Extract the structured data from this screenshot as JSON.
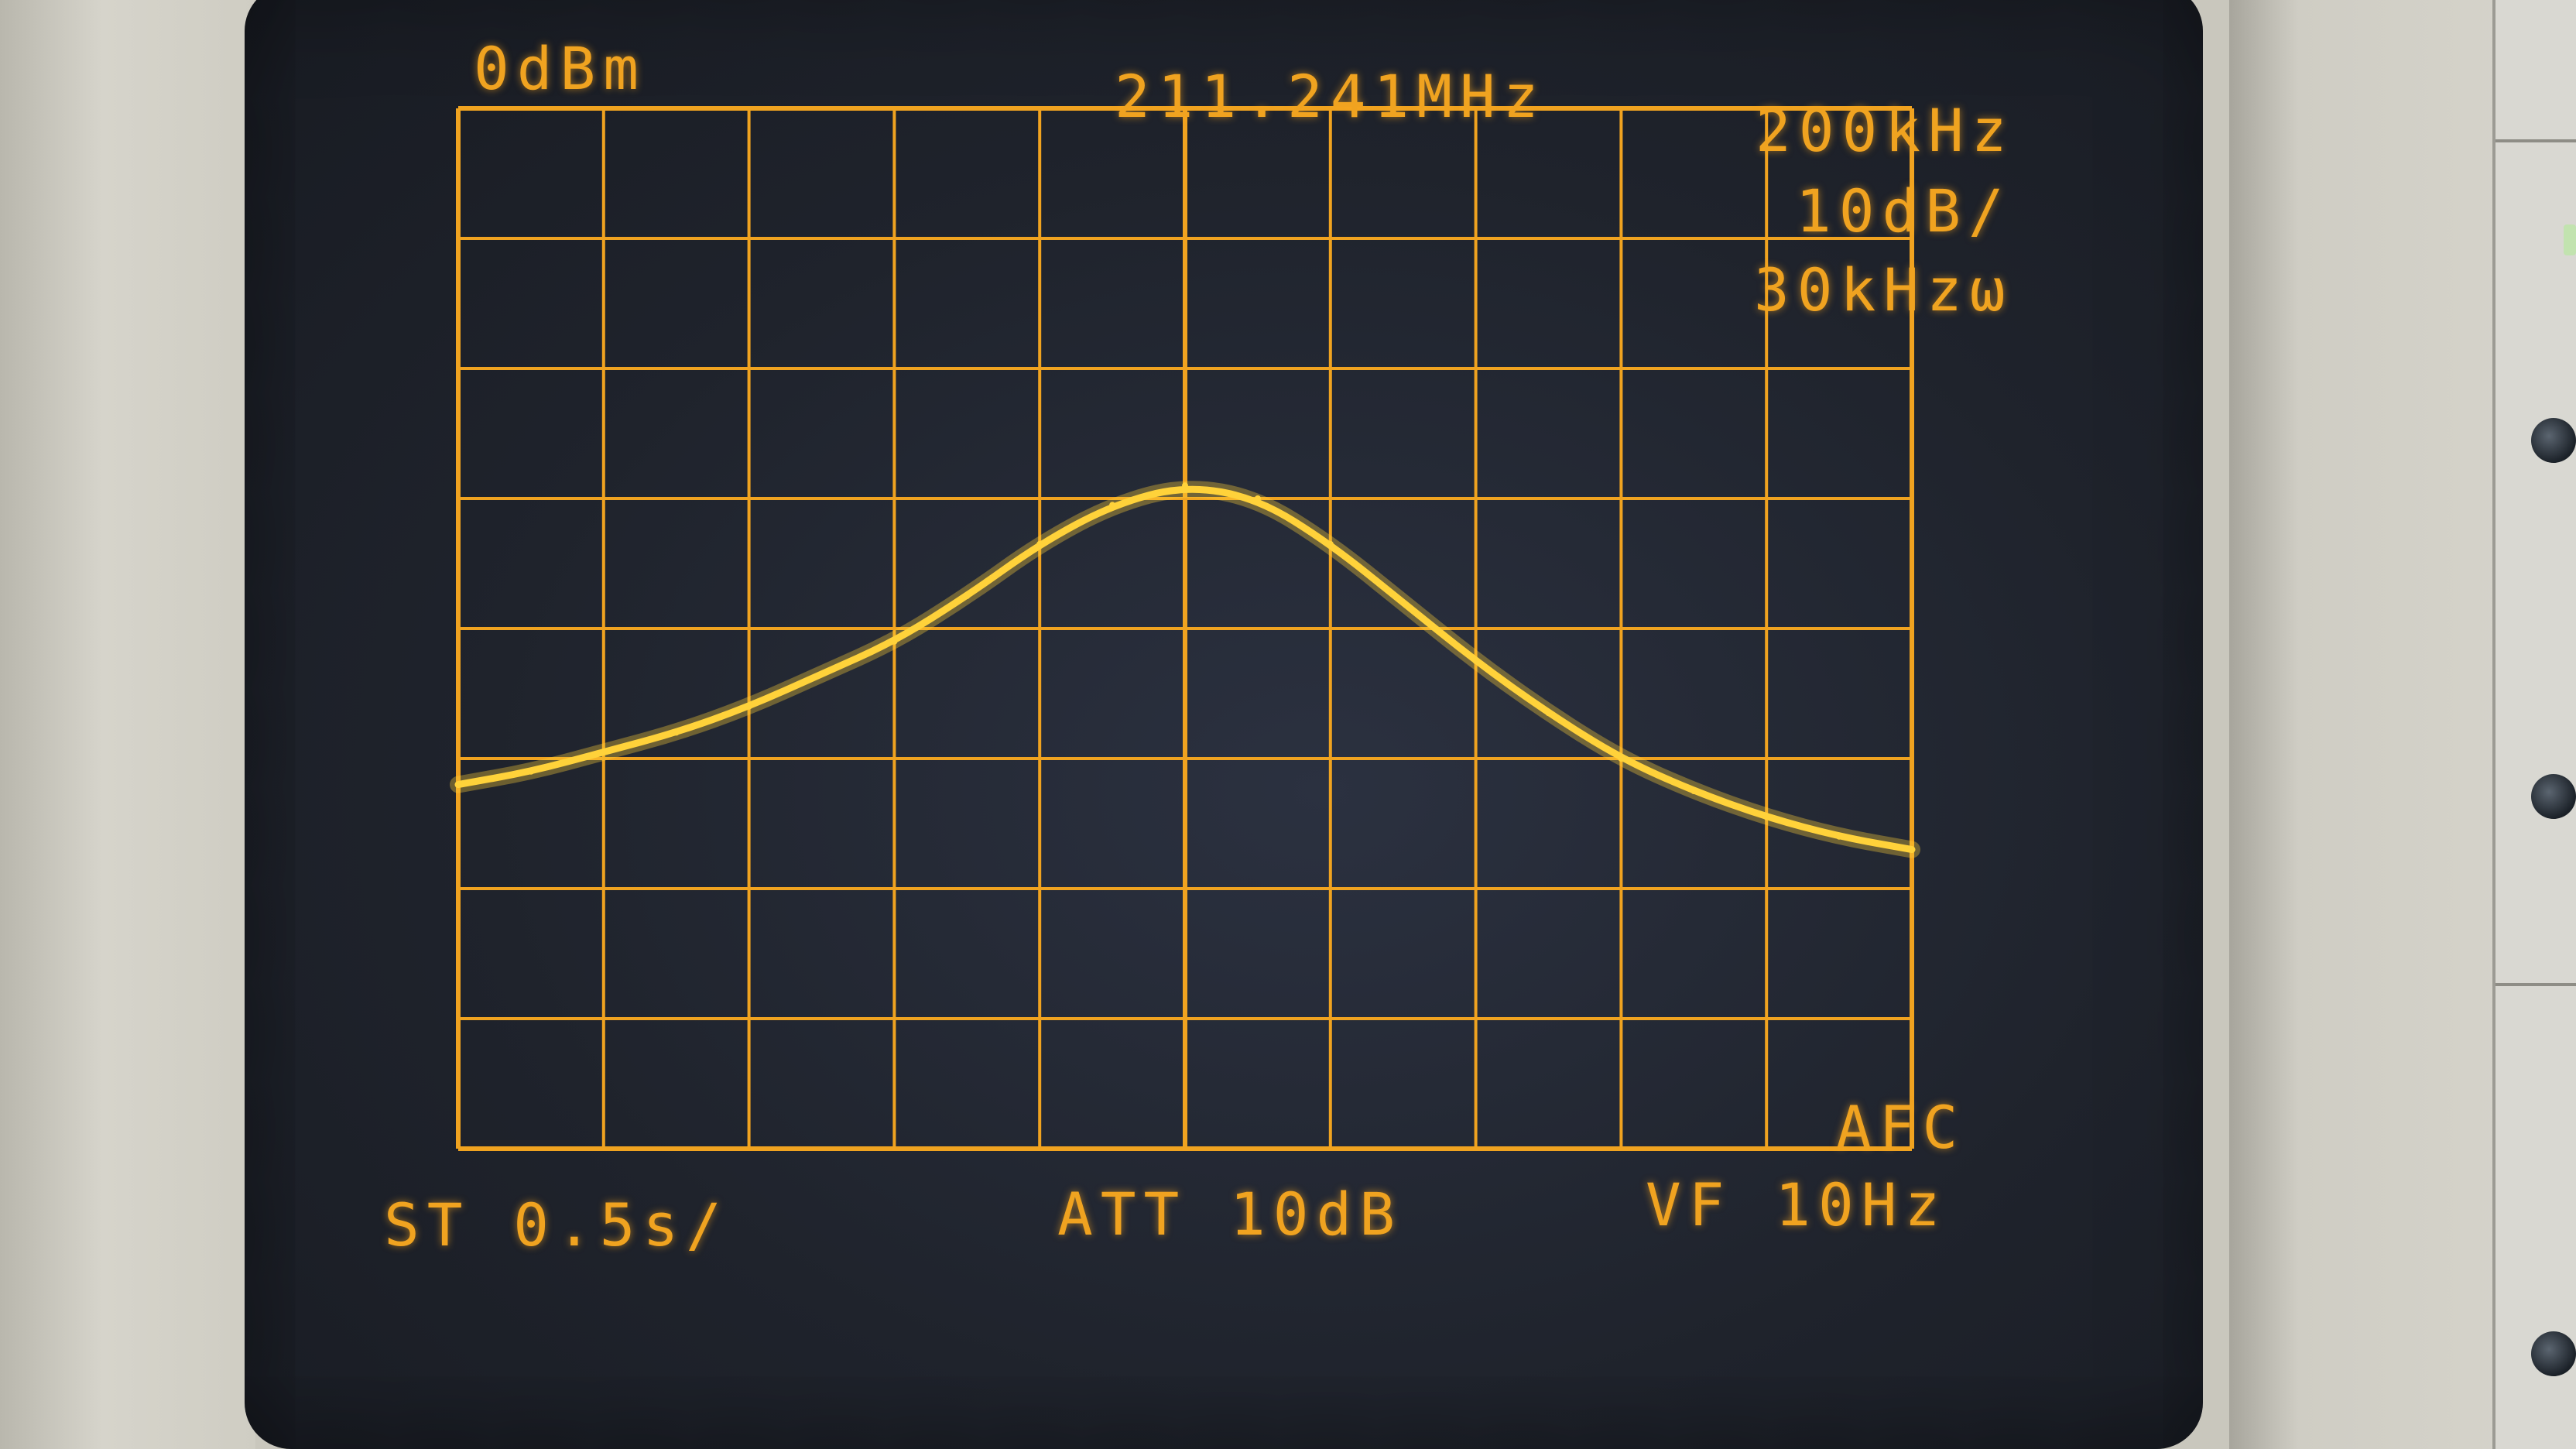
{
  "screen": {
    "top_left": "0dBm",
    "top_center": "211.241MHz",
    "top_right_1": "200kHz",
    "top_right_2": "10dB/",
    "top_right_3": "30kHzω",
    "bottom_left": "ST 0.5s/",
    "bottom_center": "ATT 10dB",
    "bottom_right_1": "AFC",
    "bottom_right_2": "VF 10Hz"
  },
  "colors": {
    "trace": "#ffd23a",
    "grid": "#f0a320",
    "text": "#f0a320"
  },
  "chart_data": {
    "type": "line",
    "grid": true,
    "x_divisions": 10,
    "y_divisions": 8,
    "x": [
      0,
      0.5,
      1,
      1.5,
      2,
      2.5,
      3,
      3.5,
      4,
      4.5,
      5,
      5.5,
      6,
      6.5,
      7,
      7.5,
      8,
      8.5,
      9,
      9.5,
      10
    ],
    "y": [
      -52,
      -51,
      -49.5,
      -48,
      -46,
      -43.5,
      -41,
      -37.5,
      -33.5,
      -30.5,
      -29,
      -30,
      -33.5,
      -38,
      -42.5,
      -46.5,
      -50,
      -52.5,
      -54.5,
      -56,
      -57
    ],
    "ylim": [
      -80,
      0
    ],
    "xlim": [
      0,
      10
    ],
    "y_unit": "dBm",
    "x_unit": "division"
  }
}
